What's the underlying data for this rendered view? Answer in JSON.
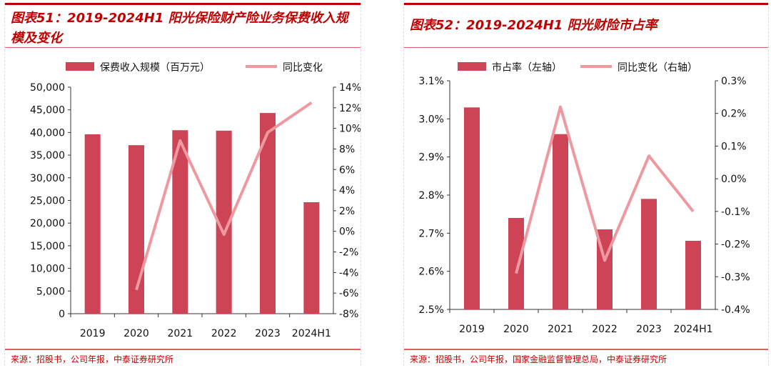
{
  "colors": {
    "bar": "#cc4455",
    "line": "#ee99a0",
    "title": "#c00000"
  },
  "chart_data": [
    {
      "type": "bar+line",
      "title": "图表51：2019-2024H1 阳光保险财产险业务保费收入规模及变化",
      "categories": [
        "2019",
        "2020",
        "2021",
        "2022",
        "2023",
        "2024H1"
      ],
      "series": [
        {
          "name": "保费收入规模（百万元）",
          "type": "bar",
          "axis": "left",
          "values": [
            39600,
            37200,
            40500,
            40400,
            44300,
            24600
          ]
        },
        {
          "name": "同比变化",
          "type": "line",
          "axis": "right",
          "values": [
            null,
            -5.7,
            8.8,
            -0.3,
            9.6,
            12.5
          ]
        }
      ],
      "ylim": [
        0,
        50000
      ],
      "yticks": [
        "0",
        "5,000",
        "10,000",
        "15,000",
        "20,000",
        "25,000",
        "30,000",
        "35,000",
        "40,000",
        "45,000",
        "50,000"
      ],
      "y2lim": [
        -8,
        14
      ],
      "y2ticks": [
        "-8%",
        "-6%",
        "-4%",
        "-2%",
        "0%",
        "2%",
        "4%",
        "6%",
        "8%",
        "10%",
        "12%",
        "14%"
      ],
      "legend": "top",
      "source": "来源：招股书，公司年报，中泰证券研究所"
    },
    {
      "type": "bar+line",
      "title": "图表52：2019-2024H1 阳光财险市占率",
      "categories": [
        "2019",
        "2020",
        "2021",
        "2022",
        "2023",
        "2024H1"
      ],
      "series": [
        {
          "name": "市占率（左轴）",
          "type": "bar",
          "axis": "left",
          "values": [
            3.03,
            2.74,
            2.96,
            2.71,
            2.79,
            2.68
          ]
        },
        {
          "name": "同比变化（右轴）",
          "type": "line",
          "axis": "right",
          "values": [
            null,
            -0.29,
            0.22,
            -0.25,
            0.07,
            -0.1
          ]
        }
      ],
      "ylim": [
        2.5,
        3.1
      ],
      "yticks": [
        "2.5%",
        "2.6%",
        "2.7%",
        "2.8%",
        "2.9%",
        "3.0%",
        "3.1%"
      ],
      "y2lim": [
        -0.4,
        0.3
      ],
      "y2ticks": [
        "-0.4%",
        "-0.3%",
        "-0.2%",
        "-0.1%",
        "0.0%",
        "0.1%",
        "0.2%",
        "0.3%"
      ],
      "legend": "top",
      "source": "来源：招股书，公司年报，国家金融监督管理总局，中泰证券研究所"
    }
  ]
}
